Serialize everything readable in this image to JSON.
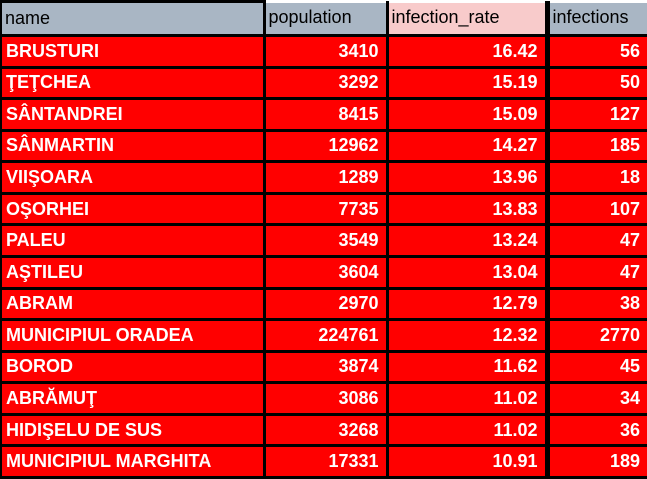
{
  "table": {
    "columns": [
      {
        "key": "name",
        "label": "name"
      },
      {
        "key": "population",
        "label": "population"
      },
      {
        "key": "infection_rate",
        "label": "infection_rate"
      },
      {
        "key": "infections",
        "label": "infections"
      }
    ],
    "rows": [
      {
        "name": "BRUSTURI",
        "population": "3410",
        "infection_rate": "16.42",
        "infections": "56"
      },
      {
        "name": "ŢEŢCHEA",
        "population": "3292",
        "infection_rate": "15.19",
        "infections": "50"
      },
      {
        "name": "SÂNTANDREI",
        "population": "8415",
        "infection_rate": "15.09",
        "infections": "127"
      },
      {
        "name": "SÂNMARTIN",
        "population": "12962",
        "infection_rate": "14.27",
        "infections": "185"
      },
      {
        "name": "VIIŞOARA",
        "population": "1289",
        "infection_rate": "13.96",
        "infections": "18"
      },
      {
        "name": "OŞORHEI",
        "population": "7735",
        "infection_rate": "13.83",
        "infections": "107"
      },
      {
        "name": "PALEU",
        "population": "3549",
        "infection_rate": "13.24",
        "infections": "47"
      },
      {
        "name": "AŞTILEU",
        "population": "3604",
        "infection_rate": "13.04",
        "infections": "47"
      },
      {
        "name": "ABRAM",
        "population": "2970",
        "infection_rate": "12.79",
        "infections": "38"
      },
      {
        "name": "MUNICIPIUL ORADEA",
        "population": "224761",
        "infection_rate": "12.32",
        "infections": "2770"
      },
      {
        "name": "BOROD",
        "population": "3874",
        "infection_rate": "11.62",
        "infections": "45"
      },
      {
        "name": "ABRĂMUŢ",
        "population": "3086",
        "infection_rate": "11.02",
        "infections": "34"
      },
      {
        "name": "HIDIŞELU DE SUS",
        "population": "3268",
        "infection_rate": "11.02",
        "infections": "36"
      },
      {
        "name": "MUNICIPIUL MARGHITA",
        "population": "17331",
        "infection_rate": "10.91",
        "infections": "189"
      }
    ]
  },
  "colors": {
    "header_bg": "#a9b6c4",
    "highlight_header_bg": "#f8cbcb",
    "row_bg": "#ff0000",
    "row_text": "#ffffff",
    "header_text": "#000000",
    "border": "#000000"
  }
}
